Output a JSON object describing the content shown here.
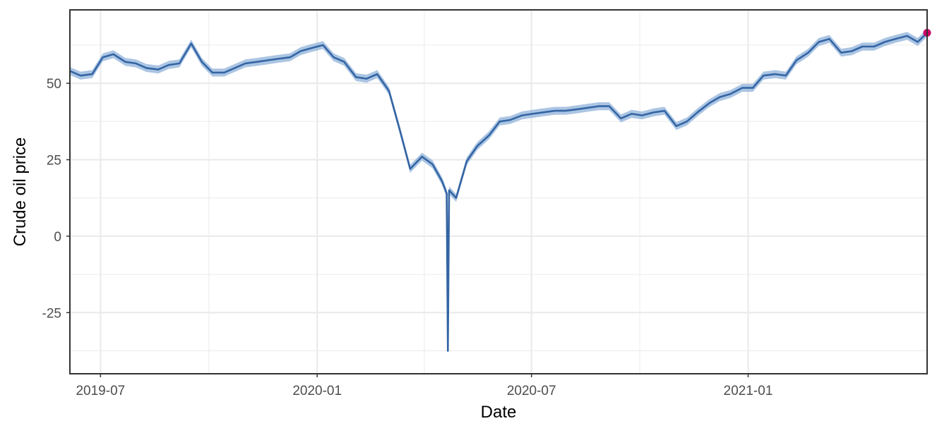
{
  "chart_data": {
    "type": "line",
    "title": "",
    "xlabel": "Date",
    "ylabel": "Crude oil price",
    "x_tick_labels": [
      "2019-07",
      "2020-01",
      "2020-07",
      "2021-01"
    ],
    "x_ticks": [
      "2019-07-01",
      "2020-01-01",
      "2020-07-01",
      "2021-01-01"
    ],
    "y_ticks": [
      50,
      25,
      0,
      -25
    ],
    "y_tick_labels": [
      "50",
      "25",
      "0",
      "-25"
    ],
    "xlim": [
      "2019-06-05",
      "2021-06-02"
    ],
    "ylim": [
      -45,
      74
    ],
    "grid": true,
    "colors": {
      "line": "#3465a4",
      "band": "#8fb1d9",
      "last_point": "#cc0066",
      "grid": "#ebebeb",
      "frame": "#333333"
    },
    "series": [
      {
        "x": [
          "2019-06-05",
          "2019-06-14",
          "2019-06-24",
          "2019-07-03",
          "2019-07-12",
          "2019-07-22",
          "2019-07-31",
          "2019-08-09",
          "2019-08-19",
          "2019-08-28",
          "2019-09-06",
          "2019-09-16",
          "2019-09-25",
          "2019-10-04",
          "2019-10-14",
          "2019-10-23",
          "2019-11-01",
          "2019-11-11",
          "2019-11-20",
          "2019-11-29",
          "2019-12-09",
          "2019-12-18",
          "2019-12-27",
          "2020-01-06",
          "2020-01-15",
          "2020-01-24",
          "2020-02-03",
          "2020-02-12",
          "2020-02-21",
          "2020-03-02",
          "2020-03-11",
          "2020-03-20",
          "2020-03-30",
          "2020-04-08",
          "2020-04-16",
          "2020-04-20",
          "2020-04-21",
          "2020-04-22",
          "2020-04-28",
          "2020-05-07",
          "2020-05-16",
          "2020-05-26",
          "2020-06-04",
          "2020-06-13",
          "2020-06-23",
          "2020-07-02",
          "2020-07-11",
          "2020-07-21",
          "2020-07-30",
          "2020-08-09",
          "2020-08-18",
          "2020-08-27",
          "2020-09-05",
          "2020-09-15",
          "2020-09-24",
          "2020-10-03",
          "2020-10-13",
          "2020-10-22",
          "2020-11-01",
          "2020-11-10",
          "2020-11-19",
          "2020-11-29",
          "2020-12-08",
          "2020-12-17",
          "2020-12-27",
          "2021-01-05",
          "2021-01-14",
          "2021-01-24",
          "2021-02-02",
          "2021-02-11",
          "2021-02-21",
          "2021-03-02",
          "2021-03-11",
          "2021-03-21",
          "2021-03-30",
          "2021-04-08",
          "2021-04-18",
          "2021-04-27",
          "2021-05-06",
          "2021-05-16",
          "2021-05-25",
          "2021-06-02"
        ],
        "y": [
          54,
          52.5,
          53,
          58.5,
          59.5,
          57,
          56.5,
          55,
          54.5,
          56,
          56.5,
          63,
          57,
          53.5,
          53.5,
          55,
          56.5,
          57,
          57.5,
          58,
          58.5,
          60.5,
          61.5,
          62.5,
          58.5,
          57,
          52,
          51.5,
          53,
          47.5,
          35,
          22,
          26,
          23.5,
          18,
          14,
          -37.5,
          15,
          12.5,
          24.5,
          29.5,
          33,
          37.5,
          38,
          39.5,
          40,
          40.5,
          41,
          41,
          41.5,
          42,
          42.5,
          42.5,
          38.5,
          40,
          39.5,
          40.5,
          41,
          36,
          37.5,
          40.5,
          43.5,
          45.5,
          46.5,
          48.5,
          48.5,
          52.5,
          53,
          52.5,
          57.5,
          60,
          63.5,
          64.5,
          60,
          60.5,
          62,
          62,
          63.5,
          64.5,
          65.5,
          63.5,
          66.5
        ]
      }
    ]
  }
}
